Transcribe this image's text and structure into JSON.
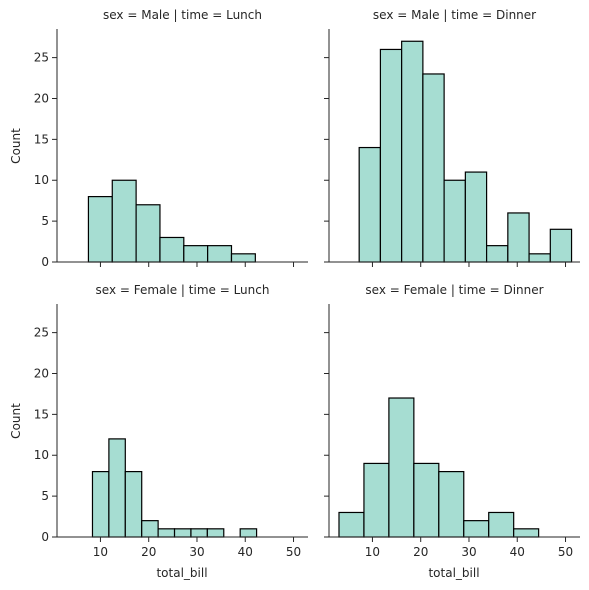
{
  "chart_data": {
    "type": "bar",
    "layout": "facet-grid",
    "bar_color": "#a6ddd2",
    "edge_color": "#000000",
    "xlim": [
      1,
      53
    ],
    "ylim": [
      0,
      28.5
    ],
    "xticks": [
      10,
      20,
      30,
      40,
      50
    ],
    "yticks": [
      0,
      5,
      10,
      15,
      20,
      25
    ],
    "xlabel": "total_bill",
    "ylabel": "Count",
    "grid": false,
    "panels": [
      {
        "title": "sex = Male | time = Lunch",
        "bin_edges": [
          7.51,
          12.45,
          17.39,
          22.33,
          27.27,
          32.21,
          37.15,
          42.09
        ],
        "counts": [
          8,
          10,
          7,
          3,
          2,
          2,
          1
        ]
      },
      {
        "title": "sex = Male | time = Dinner",
        "bin_edges": [
          7.25,
          11.65,
          16.05,
          20.45,
          24.85,
          29.25,
          33.65,
          38.05,
          42.45,
          46.85,
          51.25
        ],
        "counts": [
          14,
          26,
          27,
          23,
          10,
          11,
          2,
          6,
          1,
          4
        ]
      },
      {
        "title": "sex = Female | time = Lunch",
        "bin_edges": [
          8.35,
          11.75,
          15.15,
          18.55,
          21.95,
          25.35,
          28.75,
          32.15,
          35.55,
          38.95,
          42.35
        ],
        "counts": [
          8,
          12,
          8,
          2,
          1,
          1,
          1,
          1,
          0,
          1
        ]
      },
      {
        "title": "sex = Female | time = Dinner",
        "bin_edges": [
          3.07,
          8.24,
          13.41,
          18.58,
          23.75,
          28.92,
          34.09,
          39.26,
          44.43
        ],
        "counts": [
          3,
          9,
          17,
          9,
          8,
          2,
          3,
          1
        ]
      }
    ]
  }
}
